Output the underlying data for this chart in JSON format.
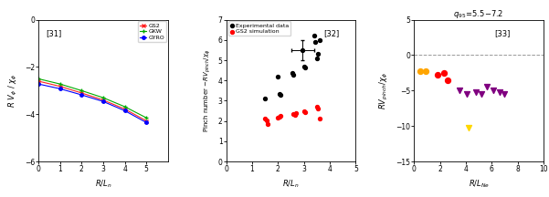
{
  "panel1": {
    "label": "[31]",
    "xlabel": "R/L_n",
    "ylabel": "R V_φ / χ_φ",
    "xlim": [
      0,
      6
    ],
    "ylim": [
      -6,
      0
    ],
    "yticks": [
      0,
      -2,
      -4,
      -6
    ],
    "xticks": [
      0,
      1,
      2,
      3,
      4,
      5
    ],
    "gs2_x": [
      0,
      1,
      2,
      3,
      4,
      5
    ],
    "gs2_y": [
      -2.6,
      -2.82,
      -3.1,
      -3.4,
      -3.78,
      -4.28
    ],
    "gkw_x": [
      0,
      1,
      2,
      3,
      4,
      5
    ],
    "gkw_y": [
      -2.5,
      -2.72,
      -3.0,
      -3.3,
      -3.68,
      -4.15
    ],
    "gyro_x": [
      0,
      1,
      2,
      3,
      4,
      5
    ],
    "gyro_y": [
      -2.72,
      -2.92,
      -3.18,
      -3.46,
      -3.85,
      -4.35
    ]
  },
  "panel2": {
    "label": "[32]",
    "xlabel": "R/L_n",
    "ylabel": "Pinch number – RV_{pinch}/χ_φ",
    "xlim": [
      0,
      5
    ],
    "ylim": [
      0,
      7
    ],
    "yticks": [
      0,
      1,
      2,
      3,
      4,
      5,
      6,
      7
    ],
    "xticks": [
      0,
      1,
      2,
      3,
      4,
      5
    ],
    "exp_x": [
      1.5,
      2.0,
      2.05,
      2.1,
      2.55,
      2.6,
      2.95,
      3.0,
      3.05,
      3.4,
      3.45,
      3.5,
      3.55,
      3.6
    ],
    "exp_y": [
      3.1,
      4.2,
      3.35,
      3.3,
      4.35,
      4.3,
      5.5,
      4.7,
      4.65,
      6.2,
      5.9,
      5.1,
      5.3,
      6.0
    ],
    "gs2_x": [
      1.5,
      1.55,
      1.6,
      2.0,
      2.05,
      2.1,
      2.6,
      2.65,
      2.7,
      3.0,
      3.05,
      3.5,
      3.55,
      3.6
    ],
    "gs2_y": [
      2.1,
      2.05,
      1.85,
      2.15,
      2.2,
      2.25,
      2.35,
      2.3,
      2.4,
      2.5,
      2.45,
      2.7,
      2.6,
      2.1
    ],
    "err_x": 2.95,
    "err_y": 5.5,
    "err_xerr": 0.45,
    "err_yerr": 0.5
  },
  "panel3": {
    "label": "[33]",
    "title": "q_{95}=5.5-7.2",
    "xlabel": "R/L_{Ne}",
    "ylabel": "RV_{pinch}/χ_φ",
    "xlim": [
      0,
      10
    ],
    "ylim": [
      -15,
      5
    ],
    "yticks": [
      -15,
      -10,
      -5,
      0,
      5
    ],
    "xticks": [
      0,
      2,
      4,
      6,
      8,
      10
    ],
    "orange_x": [
      0.5,
      0.9
    ],
    "orange_y": [
      -2.2,
      -2.3
    ],
    "red_x": [
      1.8,
      2.3,
      2.6
    ],
    "red_y": [
      -2.8,
      -2.5,
      -3.5
    ],
    "yellow_x": [
      4.2
    ],
    "yellow_y": [
      -10.2
    ],
    "purple_x": [
      3.5,
      4.1,
      4.8,
      5.2,
      5.6,
      6.1,
      6.6,
      7.0
    ],
    "purple_y": [
      -5.0,
      -5.5,
      -5.2,
      -5.5,
      -4.5,
      -5.0,
      -5.2,
      -5.5
    ],
    "dashed_y": 0
  }
}
